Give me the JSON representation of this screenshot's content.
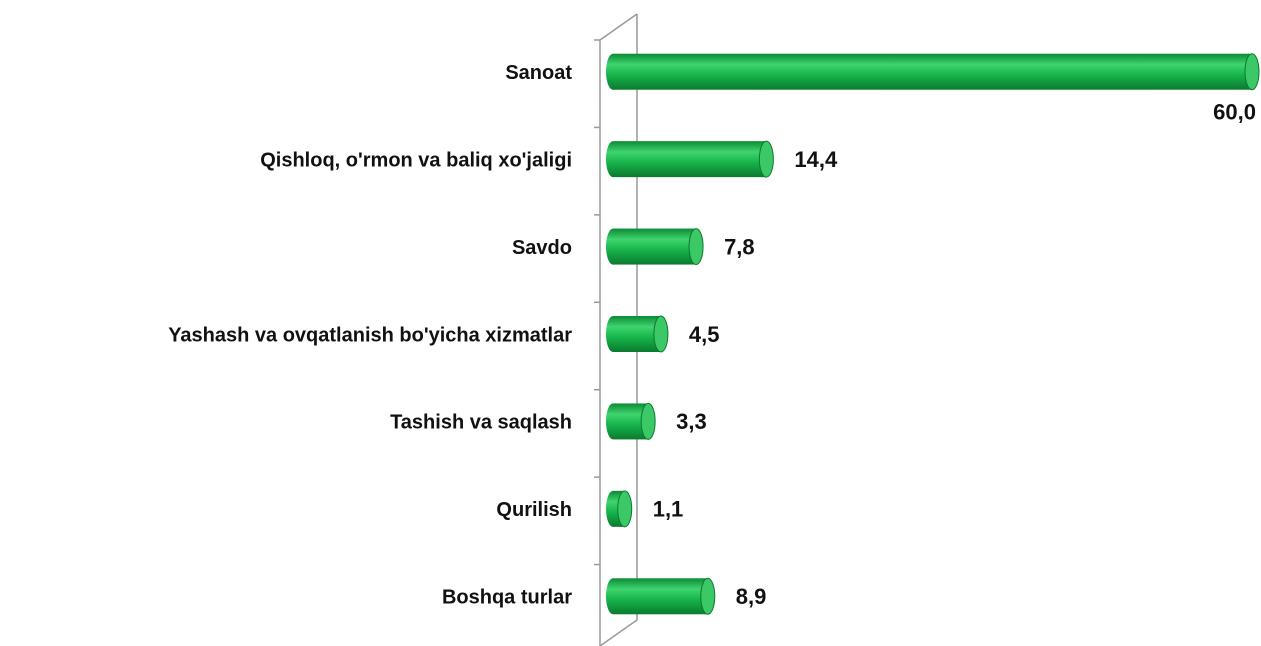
{
  "chart_data": {
    "type": "bar",
    "orientation": "horizontal",
    "categories": [
      "Sanoat",
      "Qishloq, o'rmon va baliq xo'jaligi",
      "Savdo",
      "Yashash va ovqatlanish bo'yicha xizmatlar",
      "Tashish va saqlash",
      "Qurilish",
      "Boshqa turlar"
    ],
    "values": [
      60.0,
      14.4,
      7.8,
      4.5,
      3.3,
      1.1,
      8.9
    ],
    "value_labels": [
      "60,0",
      "14,4",
      "7,8",
      "4,5",
      "3,3",
      "1,1",
      "8,9"
    ],
    "color": "#16b34a"
  }
}
